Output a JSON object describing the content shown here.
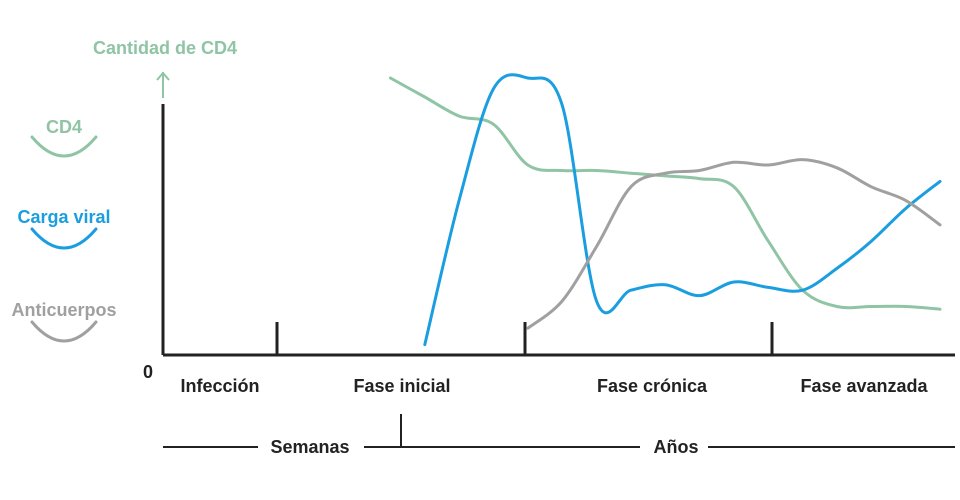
{
  "chart_data": {
    "type": "line",
    "title": "Cantidad de CD4",
    "y_origin_label": "0",
    "phases": [
      "Infección",
      "Fase inicial",
      "Fase crónica",
      "Fase avanzada"
    ],
    "timeline": {
      "left_label": "Semanas",
      "right_label": "Años"
    },
    "x": [
      0,
      5,
      10,
      15,
      20,
      25,
      30,
      35,
      40,
      45,
      50,
      55,
      60,
      65,
      70,
      75,
      80,
      85,
      90,
      95,
      100
    ],
    "ylim": [
      0,
      100
    ],
    "series": [
      {
        "name": "CD4",
        "color": "#8fc4a4",
        "values": [
          null,
          null,
          null,
          null,
          100,
          93,
          86,
          83,
          68,
          66,
          66,
          65,
          64,
          63,
          60,
          40,
          22,
          16,
          16,
          16,
          15
        ]
      },
      {
        "name": "Carga viral",
        "color": "#1a9ee0",
        "values": [
          null,
          null,
          null,
          null,
          null,
          2,
          55,
          96,
          100,
          90,
          18,
          22,
          24,
          20,
          25,
          23,
          22,
          30,
          40,
          52,
          62
        ]
      },
      {
        "name": "Anticuerpos",
        "color": "#a0a0a0",
        "values": [
          null,
          null,
          null,
          null,
          null,
          null,
          null,
          null,
          8,
          18,
          38,
          60,
          65,
          66,
          69,
          68,
          70,
          67,
          60,
          55,
          46
        ]
      }
    ]
  },
  "colors": {
    "cd4": "#8fc4a4",
    "viral": "#1a9ee0",
    "antibodies": "#a0a0a0",
    "axis": "#222222"
  }
}
